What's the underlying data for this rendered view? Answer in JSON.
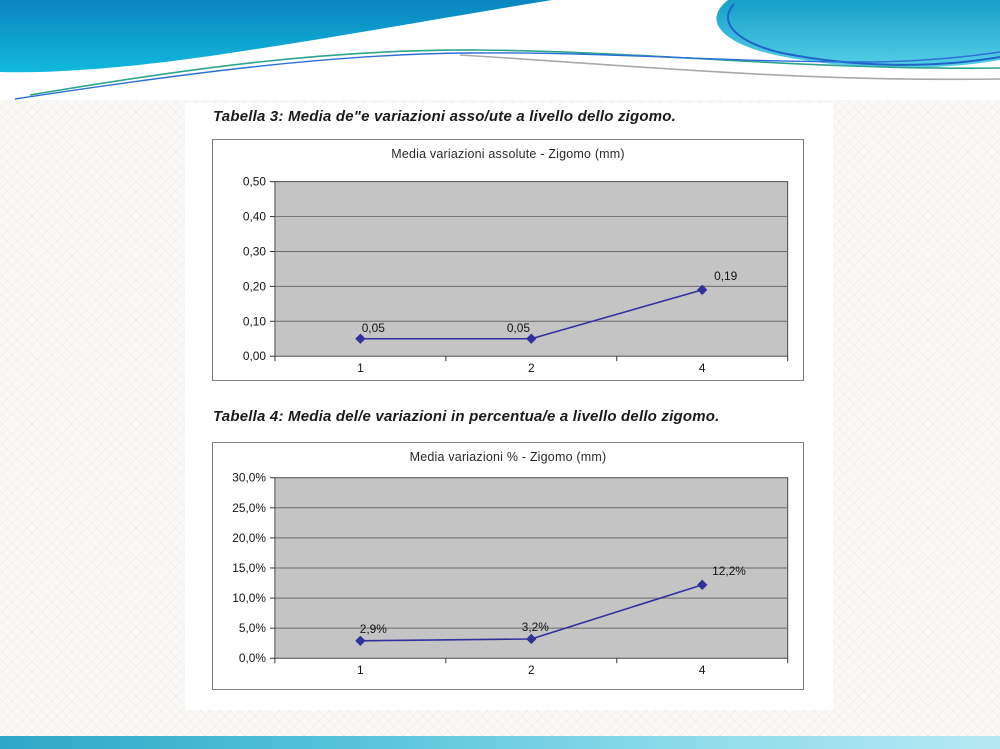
{
  "captions": {
    "table3": "Tabella 3: Media de\"e variazioni asso/ute a livello dello zigomo.",
    "table4": "Tabella 4: Media del/e variazioni in percentua/e a livello dello zigomo."
  },
  "theme": {
    "wave_blue_dark": "#0a85c0",
    "wave_cyan": "#12b9dc",
    "wave_teal_right_dark": "#169fca",
    "wave_teal_right_light": "#55cfe6",
    "accent_line_green": "#2ba58e",
    "accent_line_blue": "#2e6fd6",
    "accent_line_royal": "#2064c8",
    "accent_line_gray": "#a9a9a9",
    "footer_teal": "#2ea7c6"
  },
  "chart_data": [
    {
      "type": "line",
      "title": "Media variazioni assolute - Zigomo (mm)",
      "categories": [
        "1",
        "2",
        "4"
      ],
      "values": [
        0.05,
        0.05,
        0.19
      ],
      "data_labels": [
        "0,05",
        "0,05",
        "0,19"
      ],
      "y_ticks": [
        "0,50",
        "0,40",
        "0,30",
        "0,20",
        "0,10",
        "0,00"
      ],
      "ylim": [
        0,
        0.5
      ],
      "grid": true,
      "legend": "none",
      "xlabel": "",
      "ylabel": "",
      "line_color": "#31319b",
      "marker": "diamond",
      "plot_bg": "#c4c4c4"
    },
    {
      "type": "line",
      "title": "Media variazioni %  - Zigomo (mm)",
      "categories": [
        "1",
        "2",
        "4"
      ],
      "values": [
        2.9,
        3.2,
        12.2
      ],
      "data_labels": [
        "2,9%",
        "3,2%",
        "12,2%"
      ],
      "y_ticks": [
        "30,0%",
        "25,0%",
        "20,0%",
        "15,0%",
        "10,0%",
        "5,0%",
        "0,0%"
      ],
      "ylim": [
        0,
        30
      ],
      "grid": true,
      "legend": "none",
      "xlabel": "",
      "ylabel": "",
      "line_color": "#31319b",
      "marker": "diamond",
      "plot_bg": "#c4c4c4"
    }
  ]
}
